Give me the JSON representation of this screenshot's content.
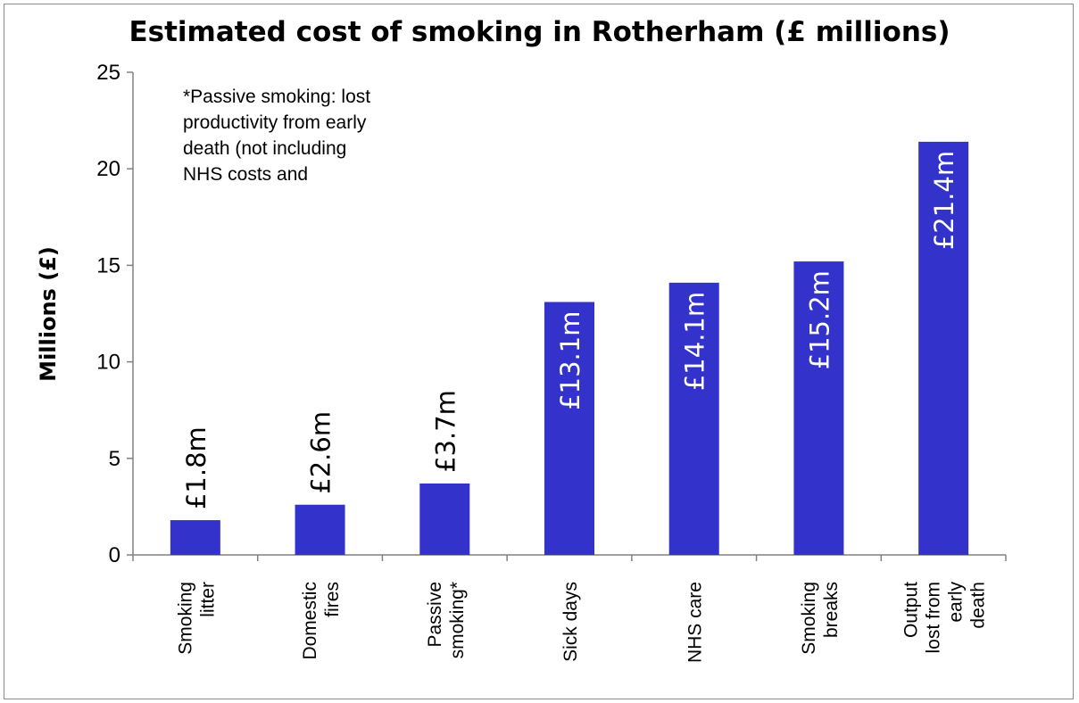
{
  "chart_data": {
    "type": "bar",
    "title": "Estimated cost of smoking in Rotherham (£ millions)",
    "ylabel": "Millions (£)",
    "xlabel": "",
    "ylim": [
      0,
      25
    ],
    "yticks": [
      "0",
      "5",
      "10",
      "15",
      "20",
      "25"
    ],
    "grid": false,
    "bar_color": "#3333CC",
    "categories": [
      "Smoking\nlitter",
      "Domestic\nfires",
      "Passive\nsmoking*",
      "Sick days",
      "NHS care",
      "Smoking\nbreaks",
      "Output\nlost from\nearly\ndeath"
    ],
    "values": [
      1.8,
      2.6,
      3.7,
      13.1,
      14.1,
      15.2,
      21.4
    ],
    "data_labels": [
      "£1.8m",
      "£2.6m",
      "£3.7m",
      "£13.1m",
      "£14.1m",
      "£15.2m",
      "£21.4m"
    ],
    "annotation": "*Passive smoking: lost\nproductivity from early\ndeath (not including\nNHS costs and"
  }
}
